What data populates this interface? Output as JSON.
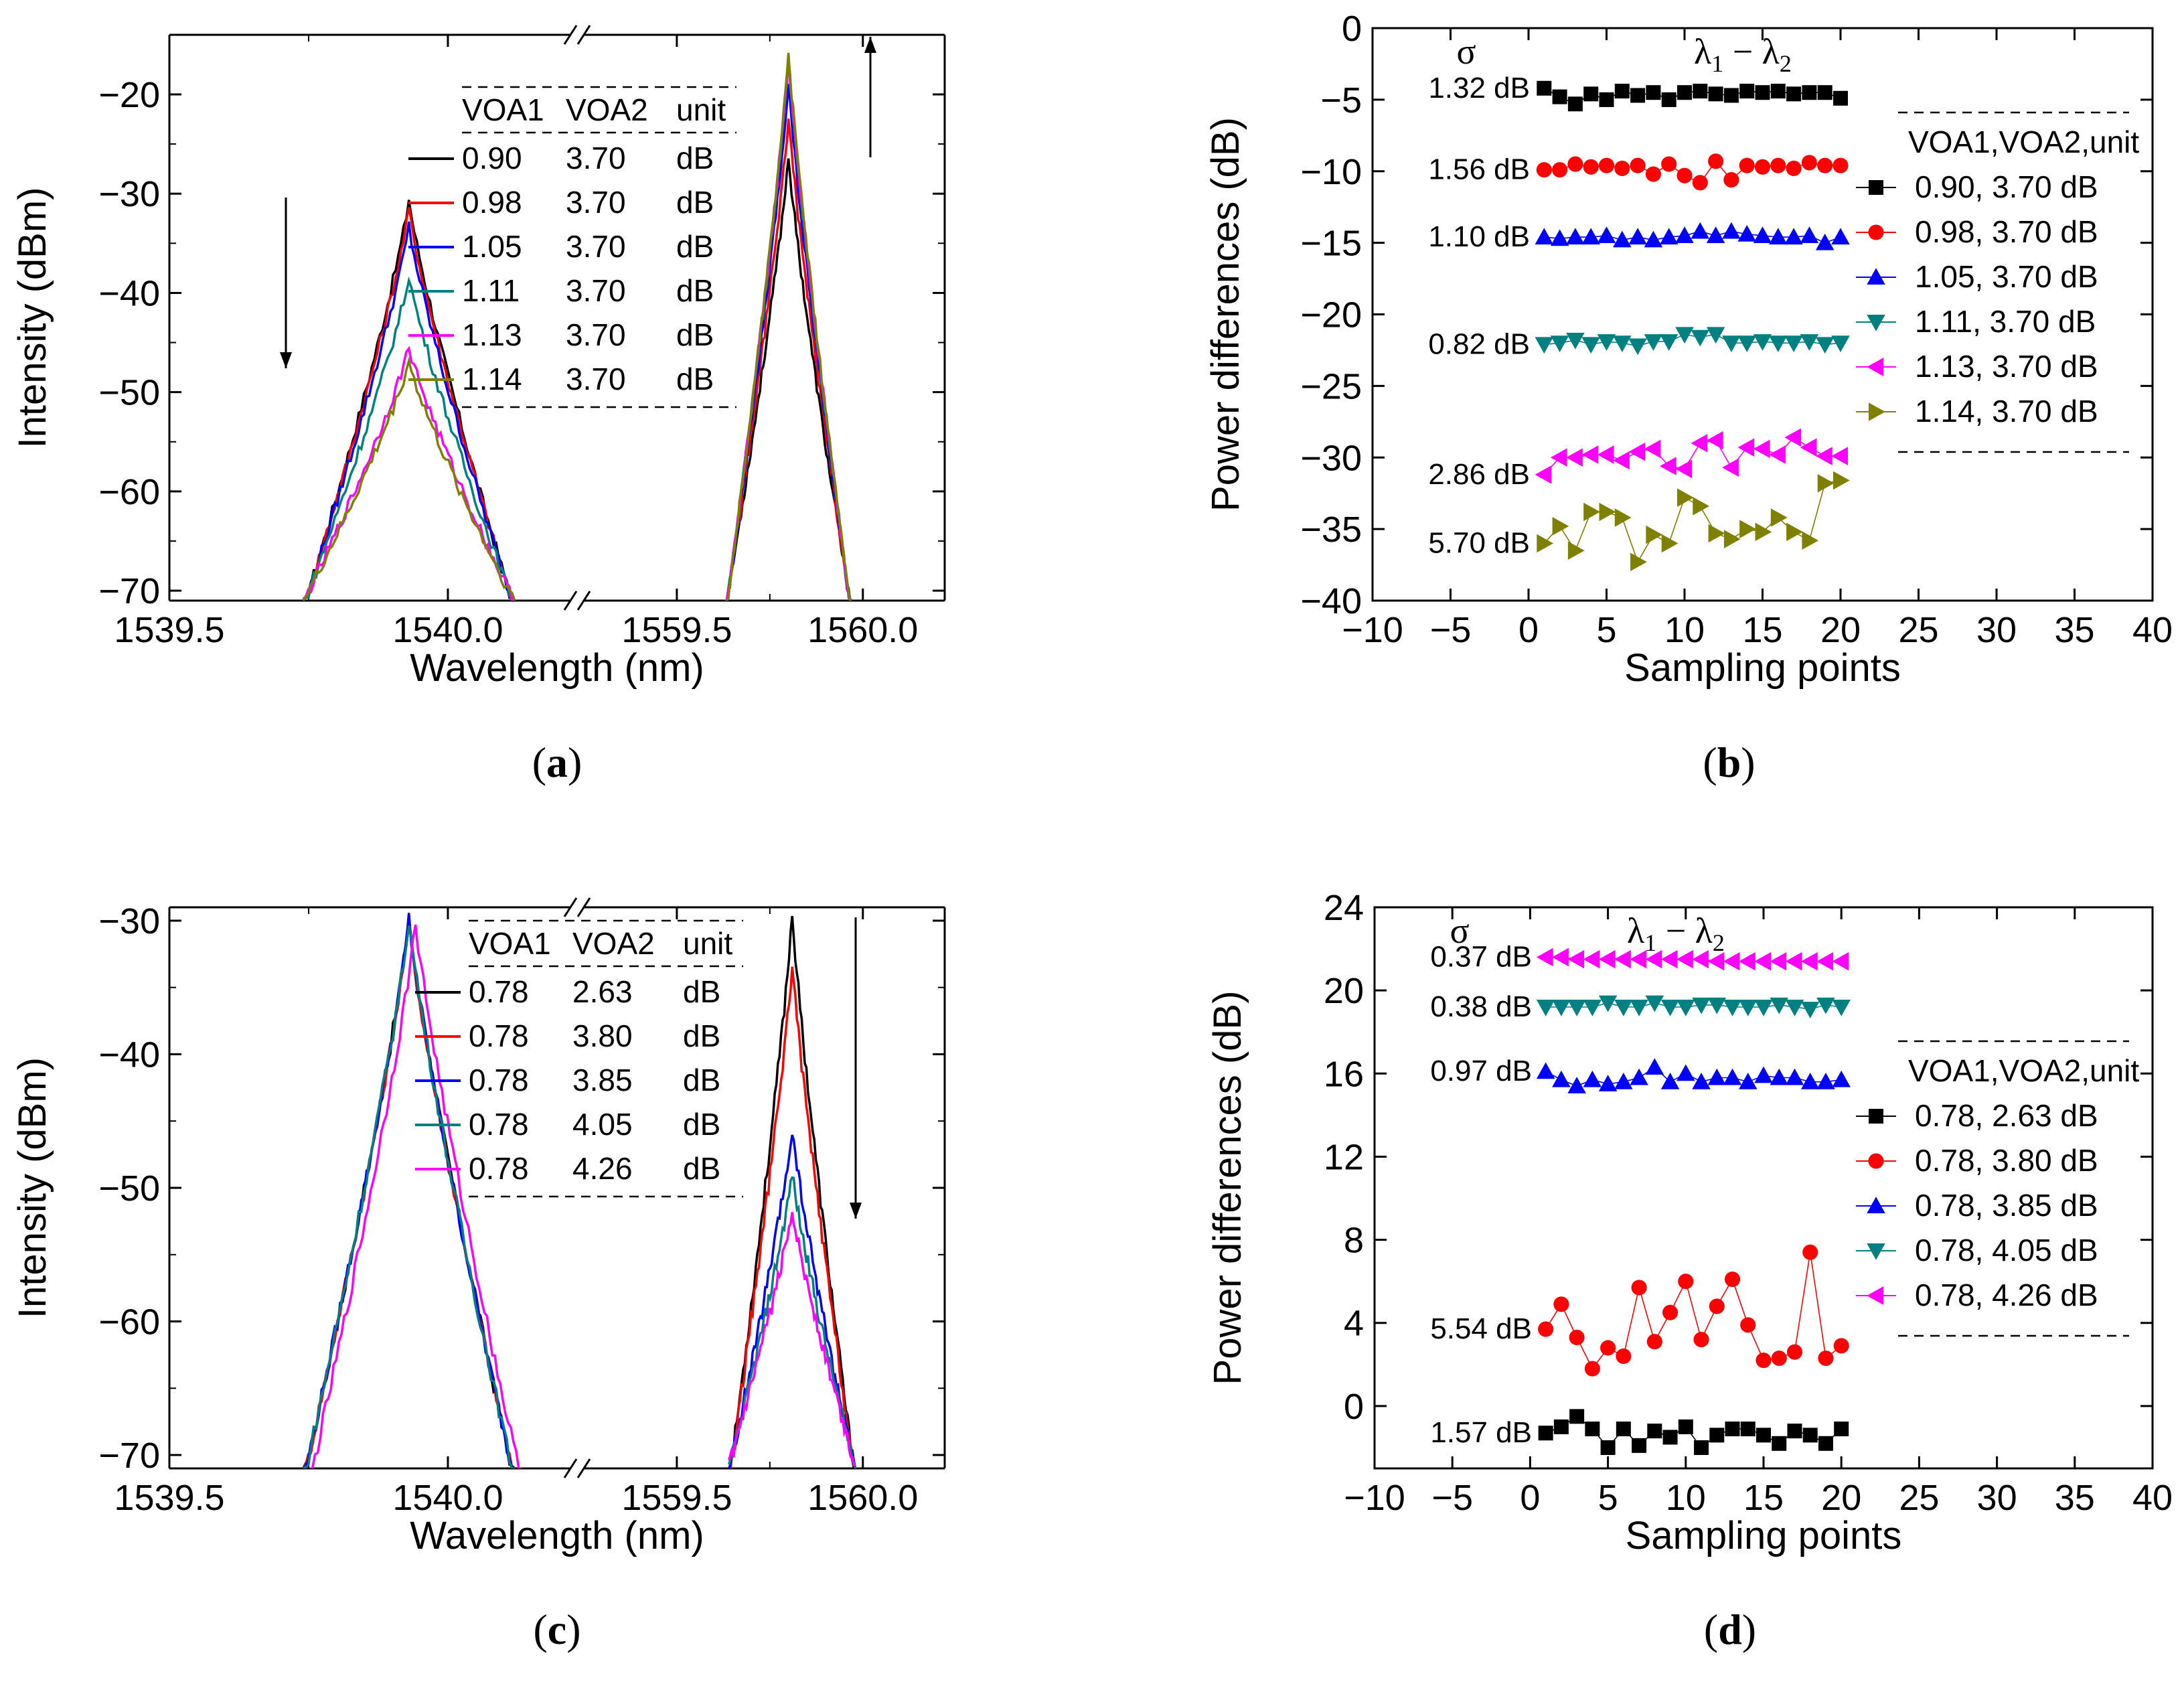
{
  "chart_data": [
    {
      "id": "a",
      "type": "line",
      "label": "a",
      "xlabel": "Wavelength (nm)",
      "ylabel": "Intensity (dBm)",
      "ylim": [
        -71,
        -14
      ],
      "yticks": [
        -20,
        -30,
        -40,
        -50,
        -60,
        -70
      ],
      "xticks_left": [
        "1539.5",
        "1540.0"
      ],
      "xticks_right": [
        "1559.5",
        "1560.0"
      ],
      "xlim_left": [
        1539.5,
        1540.22
      ],
      "xlim_right": [
        1559.25,
        1560.22
      ],
      "legend_header": [
        "VOA1",
        "VOA2",
        "unit"
      ],
      "peak1_center": 1539.93,
      "peak2_center": 1559.8,
      "series": [
        {
          "name": "0.90",
          "voa1": "0.90",
          "voa2": "3.70",
          "unit": "dB",
          "color": "#000000",
          "peak1": -30.5,
          "peak2": -26.0,
          "shift": 0.0
        },
        {
          "name": "0.98",
          "voa1": "0.98",
          "voa2": "3.70",
          "unit": "dB",
          "color": "#ff0000",
          "peak1": -31.5,
          "peak2": -22.0,
          "shift": 0.0
        },
        {
          "name": "1.05",
          "voa1": "1.05",
          "voa2": "3.70",
          "unit": "dB",
          "color": "#0000ff",
          "peak1": -33.2,
          "peak2": -18.5,
          "shift": 0.0
        },
        {
          "name": "1.11",
          "voa1": "1.11",
          "voa2": "3.70",
          "unit": "dB",
          "color": "#008080",
          "peak1": -38.2,
          "peak2": -16.0,
          "shift": 0.0
        },
        {
          "name": "1.13",
          "voa1": "1.13",
          "voa2": "3.70",
          "unit": "dB",
          "color": "#ff00ff",
          "peak1": -45.3,
          "peak2": -15.8,
          "shift": 0.0
        },
        {
          "name": "1.14",
          "voa1": "1.14",
          "voa2": "3.70",
          "unit": "dB",
          "color": "#808000",
          "peak1": -46.8,
          "peak2": -15.4,
          "shift": 0.0
        }
      ]
    },
    {
      "id": "b",
      "type": "scatter",
      "label": "b",
      "title": "λ1 − λ2",
      "sigma_label": "σ",
      "xlabel": "Sampling points",
      "ylabel": "Power differences (dB)",
      "xlim": [
        -10,
        40
      ],
      "ylim": [
        -40,
        0
      ],
      "xticks": [
        -10,
        -5,
        0,
        5,
        10,
        15,
        20,
        25,
        30,
        35,
        40
      ],
      "yticks": [
        0,
        -5,
        -10,
        -15,
        -20,
        -25,
        -30,
        -35,
        -40
      ],
      "xtick_labels": [
        "−10",
        "−5",
        "0",
        "5",
        "10",
        "15",
        "20",
        "25",
        "30",
        "35",
        "40"
      ],
      "ytick_labels": [
        "0",
        "−5",
        "−10",
        "−15",
        "−20",
        "−25",
        "−30",
        "−35",
        "−40"
      ],
      "legend_header": "VOA1,VOA2,unit",
      "series": [
        {
          "name": "0.90, 3.70  dB",
          "sigma": "1.32 dB",
          "color": "#000000",
          "marker": "square",
          "values": [
            -4.2,
            -4.8,
            -5.3,
            -4.6,
            -5.0,
            -4.4,
            -4.7,
            -4.5,
            -5.0,
            -4.5,
            -4.4,
            -4.6,
            -4.7,
            -4.4,
            -4.5,
            -4.4,
            -4.6,
            -4.5,
            -4.5,
            -4.9
          ]
        },
        {
          "name": "0.98, 3.70  dB",
          "sigma": "1.56 dB",
          "color": "#ff0000",
          "marker": "circle",
          "values": [
            -9.9,
            -9.9,
            -9.5,
            -9.7,
            -9.6,
            -9.8,
            -9.6,
            -10.2,
            -9.5,
            -10.3,
            -10.8,
            -9.3,
            -10.6,
            -9.6,
            -9.7,
            -9.6,
            -9.8,
            -9.4,
            -9.6,
            -9.6
          ]
        },
        {
          "name": "1.05, 3.70  dB",
          "sigma": "1.10 dB",
          "color": "#0000ff",
          "marker": "triangle-up",
          "values": [
            -14.6,
            -14.7,
            -14.6,
            -14.6,
            -14.5,
            -14.8,
            -14.6,
            -14.8,
            -14.6,
            -14.5,
            -14.2,
            -14.5,
            -14.2,
            -14.4,
            -14.5,
            -14.6,
            -14.6,
            -14.5,
            -15.0,
            -14.6
          ]
        },
        {
          "name": "1.11, 3.70  dB",
          "sigma": "0.82 dB",
          "color": "#008080",
          "marker": "triangle-down",
          "values": [
            -22.1,
            -22.0,
            -21.8,
            -22.1,
            -21.9,
            -22.0,
            -22.2,
            -21.9,
            -21.9,
            -21.4,
            -21.6,
            -21.4,
            -22.0,
            -22.0,
            -21.9,
            -22.0,
            -22.0,
            -21.9,
            -22.1,
            -22.0
          ]
        },
        {
          "name": "1.13, 3.70  dB",
          "sigma": "2.86 dB",
          "color": "#ff00ff",
          "marker": "triangle-left",
          "values": [
            -31.2,
            -30.0,
            -30.0,
            -29.8,
            -29.8,
            -30.2,
            -29.6,
            -29.4,
            -30.6,
            -30.8,
            -29.0,
            -28.8,
            -30.7,
            -29.3,
            -29.4,
            -29.8,
            -28.6,
            -29.3,
            -29.9,
            -29.9
          ]
        },
        {
          "name": "1.14, 3.70  dB",
          "sigma": "5.70 dB",
          "color": "#808000",
          "marker": "triangle-right",
          "values": [
            -36.0,
            -34.8,
            -36.5,
            -33.8,
            -33.8,
            -34.2,
            -37.3,
            -35.4,
            -36.0,
            -32.8,
            -33.4,
            -35.3,
            -35.7,
            -35.0,
            -35.2,
            -34.2,
            -35.2,
            -35.8,
            -31.8,
            -31.6
          ]
        }
      ]
    },
    {
      "id": "c",
      "type": "line",
      "label": "c",
      "xlabel": "Wavelength (nm)",
      "ylabel": "Intensity (dBm)",
      "ylim": [
        -71,
        -29
      ],
      "yticks": [
        -30,
        -40,
        -50,
        -60,
        -70
      ],
      "xticks_left": [
        "1539.5",
        "1540.0"
      ],
      "xticks_right": [
        "1559.5",
        "1560.0"
      ],
      "xlim_left": [
        1539.5,
        1540.22
      ],
      "xlim_right": [
        1559.25,
        1560.22
      ],
      "legend_header": [
        "VOA1",
        "VOA2",
        "unit"
      ],
      "peak1_center": 1539.93,
      "peak2_center": 1559.81,
      "series": [
        {
          "name": "2.63",
          "voa1": "0.78",
          "voa2": "2.63",
          "unit": "dB",
          "color": "#000000",
          "peak1": -29.8,
          "peak2": -29.2,
          "shift": 0.0
        },
        {
          "name": "3.80",
          "voa1": "0.78",
          "voa2": "3.80",
          "unit": "dB",
          "color": "#ff0000",
          "peak1": -30.0,
          "peak2": -33.0,
          "shift": 0.0
        },
        {
          "name": "3.85",
          "voa1": "0.78",
          "voa2": "3.85",
          "unit": "dB",
          "color": "#0000ff",
          "peak1": -29.8,
          "peak2": -45.6,
          "shift": 0.0
        },
        {
          "name": "4.05",
          "voa1": "0.78",
          "voa2": "4.05",
          "unit": "dB",
          "color": "#008080",
          "peak1": -29.8,
          "peak2": -48.8,
          "shift": 0.0
        },
        {
          "name": "4.26",
          "voa1": "0.78",
          "voa2": "4.26",
          "unit": "dB",
          "color": "#ff00ff",
          "peak1": -30.0,
          "peak2": -51.4,
          "shift": 0.012
        }
      ]
    },
    {
      "id": "d",
      "type": "scatter",
      "label": "d",
      "title": "λ1 − λ2",
      "sigma_label": "σ",
      "xlabel": "Sampling points",
      "ylabel": "Power differences (dB)",
      "xlim": [
        -10,
        40
      ],
      "ylim": [
        -3,
        24
      ],
      "xticks": [
        -10,
        -5,
        0,
        5,
        10,
        15,
        20,
        25,
        30,
        35,
        40
      ],
      "yticks": [
        0,
        4,
        8,
        12,
        16,
        20,
        24
      ],
      "xtick_labels": [
        "−10",
        "−5",
        "0",
        "5",
        "10",
        "15",
        "20",
        "25",
        "30",
        "35",
        "40"
      ],
      "ytick_labels": [
        "0",
        "4",
        "8",
        "12",
        "16",
        "20",
        "24"
      ],
      "legend_header": "VOA1,VOA2,unit",
      "series": [
        {
          "name": "0.78, 2.63  dB",
          "sigma": "1.57 dB",
          "color": "#000000",
          "marker": "square",
          "values": [
            -1.3,
            -1.0,
            -0.5,
            -1.1,
            -2.0,
            -1.1,
            -1.9,
            -1.2,
            -1.5,
            -1.0,
            -2.0,
            -1.4,
            -1.1,
            -1.1,
            -1.4,
            -1.8,
            -1.2,
            -1.4,
            -1.8,
            -1.1
          ]
        },
        {
          "name": "0.78, 3.80  dB",
          "sigma": "5.54 dB",
          "color": "#ff0000",
          "marker": "circle",
          "values": [
            3.7,
            4.9,
            3.3,
            1.8,
            2.8,
            2.4,
            5.7,
            3.1,
            4.5,
            6.0,
            3.2,
            4.8,
            6.1,
            3.9,
            2.2,
            2.3,
            2.6,
            7.4,
            2.3,
            2.9
          ]
        },
        {
          "name": "0.78, 3.85  dB",
          "sigma": "0.97 dB",
          "color": "#0000ff",
          "marker": "triangle-up",
          "values": [
            16.1,
            15.7,
            15.4,
            15.7,
            15.5,
            15.6,
            15.8,
            16.3,
            15.6,
            16.0,
            15.6,
            15.8,
            15.8,
            15.6,
            15.9,
            15.8,
            15.8,
            15.6,
            15.6,
            15.7
          ]
        },
        {
          "name": "0.78, 4.05  dB",
          "sigma": "0.38 dB",
          "color": "#008080",
          "marker": "triangle-down",
          "values": [
            19.2,
            19.2,
            19.2,
            19.2,
            19.4,
            19.2,
            19.2,
            19.4,
            19.2,
            19.2,
            19.3,
            19.3,
            19.2,
            19.2,
            19.2,
            19.3,
            19.2,
            19.1,
            19.3,
            19.2
          ]
        },
        {
          "name": "0.78, 4.26  dB",
          "sigma": "0.37 dB",
          "color": "#ff00ff",
          "marker": "triangle-left",
          "values": [
            21.6,
            21.6,
            21.5,
            21.5,
            21.5,
            21.5,
            21.5,
            21.5,
            21.5,
            21.5,
            21.5,
            21.4,
            21.4,
            21.4,
            21.4,
            21.4,
            21.4,
            21.4,
            21.4,
            21.4
          ]
        }
      ]
    }
  ]
}
